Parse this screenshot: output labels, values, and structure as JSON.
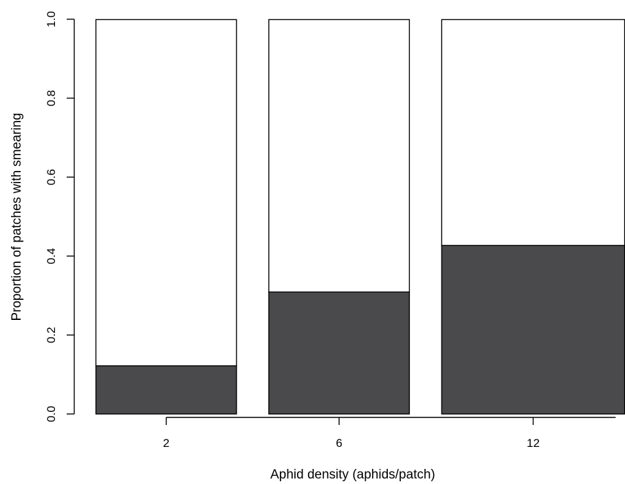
{
  "chart_data": {
    "type": "bar",
    "subtype": "stacked-proportion",
    "title": "",
    "xlabel": "Aphid density (aphids/patch)",
    "ylabel": "Proportion of patches with smearing",
    "categories": [
      "2",
      "6",
      "12"
    ],
    "widths": [
      1,
      1,
      1.3
    ],
    "series": [
      {
        "values": [
          0.122,
          0.309,
          0.427
        ]
      },
      {
        "values": [
          0.878,
          0.691,
          0.573
        ]
      }
    ],
    "ylim": [
      0,
      1
    ],
    "yticks": [
      "0.0",
      "0.2",
      "0.4",
      "0.6",
      "0.8",
      "1.0"
    ],
    "grid": false,
    "legend": "none",
    "colors": {
      "smearing": "#4a4a4c",
      "no_smearing": "#ffffff",
      "border": "#000000"
    }
  }
}
